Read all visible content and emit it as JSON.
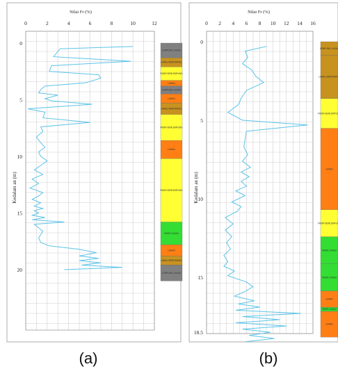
{
  "colors": {
    "line": "#5bc3e8",
    "grid": "#cfcfcf",
    "frame": "#9a9a9a",
    "soil_gray": "#808080",
    "soil_brown": "#c8921e",
    "soil_yellow": "#ffff33",
    "soil_orange": "#ff7f14",
    "soil_green": "#33dd33"
  },
  "chart_data": [
    {
      "type": "line",
      "panel": "(a)",
      "title": "Nilai Fr (%)",
      "xlabel": "Nilai Fr (%)",
      "ylabel": "Kedalam an (m)",
      "xlim": [
        0,
        12
      ],
      "xticks": [
        "0",
        "2",
        "4",
        "6",
        "8",
        "10",
        "12"
      ],
      "ylim": [
        0,
        23
      ],
      "yticks": [
        "0",
        "5",
        "10",
        "15",
        "20"
      ],
      "grid": true,
      "series": [
        {
          "x": [
            10,
            3.2,
            2.6,
            9.8,
            2.4,
            2.2,
            6.8,
            7.0,
            5.6,
            1.8,
            1.4,
            1.2,
            3.0,
            1.8,
            2.4,
            6.2,
            0.2,
            1.8,
            1.6,
            6.0,
            1.4,
            1.6,
            1.0,
            1.4,
            1.8,
            1.2,
            1.4,
            2.0,
            1.4,
            0.8,
            1.6,
            0.6,
            1.2,
            0.4,
            1.6,
            1.2,
            0.6,
            1.4,
            0.8,
            1.6,
            0.8,
            1.2,
            0.6,
            1.8,
            0.6,
            3.6,
            0.8,
            1.6,
            1.2,
            1.4,
            2.2,
            5.0,
            6.6,
            5.0,
            6.8,
            5.0,
            7.0,
            5.2,
            9.0,
            3.6
          ],
          "y": [
            0.3,
            0.5,
            1.2,
            1.6,
            2.0,
            2.5,
            2.8,
            3.1,
            3.5,
            3.8,
            4.1,
            4.4,
            4.6,
            4.9,
            5.1,
            5.4,
            5.8,
            6.1,
            6.6,
            7.0,
            7.4,
            7.8,
            8.3,
            8.8,
            9.2,
            9.6,
            10.0,
            10.4,
            10.8,
            11.2,
            11.6,
            12.0,
            12.4,
            12.8,
            13.2,
            13.5,
            13.8,
            14.1,
            14.4,
            14.6,
            14.8,
            15.0,
            15.2,
            15.4,
            15.6,
            15.8,
            16.0,
            16.6,
            17.2,
            17.6,
            17.9,
            18.2,
            18.5,
            18.8,
            19.0,
            19.2,
            19.4,
            19.6,
            19.8,
            20.0
          ]
        }
      ],
      "soil_column": [
        {
          "from": 0,
          "to": 1.3,
          "color": "#808080",
          "label": "LEMPUNG LANAU"
        },
        {
          "from": 1.3,
          "to": 2.1,
          "color": "#c8921e",
          "label": "LANAU BERGRAVEL"
        },
        {
          "from": 2.1,
          "to": 3.3,
          "color": "#ffff33",
          "label": "PASIR BERLEMPUNG"
        },
        {
          "from": 3.3,
          "to": 3.8,
          "color": "#ff7f14",
          "label": "LANAU"
        },
        {
          "from": 3.8,
          "to": 4.5,
          "color": "#808080",
          "label": "LEMPUNG LANAU"
        },
        {
          "from": 4.5,
          "to": 5.3,
          "color": "#ff7f14",
          "label": "LANAU"
        },
        {
          "from": 5.3,
          "to": 6.3,
          "color": "#c8921e",
          "label": "LANAU BERGRAVEL"
        },
        {
          "from": 6.3,
          "to": 8.6,
          "color": "#ffff33",
          "label": "PASIR BERLEMPUNG"
        },
        {
          "from": 8.6,
          "to": 10.2,
          "color": "#ff7f14",
          "label": "LANAU"
        },
        {
          "from": 10.2,
          "to": 15.8,
          "color": "#ffff33",
          "label": "PASIR BERLEMPUNG"
        },
        {
          "from": 15.8,
          "to": 17.8,
          "color": "#33dd33",
          "label": "PASIR LANAU"
        },
        {
          "from": 17.8,
          "to": 18.8,
          "color": "#ff7f14",
          "label": "LANAU"
        },
        {
          "from": 18.8,
          "to": 19.6,
          "color": "#c8921e",
          "label": "LANAU BERGRAVEL"
        },
        {
          "from": 19.6,
          "to": 21.0,
          "color": "#808080",
          "label": "LEMPUNG LANAU"
        }
      ]
    },
    {
      "type": "line",
      "panel": "(b)",
      "title": "Nilai Fr (%)",
      "xlabel": "Nilai Fr (%)",
      "ylabel": "Kedalam an (m)",
      "xlim": [
        0,
        16
      ],
      "xticks": [
        "0",
        "2",
        "4",
        "6",
        "8",
        "10",
        "12",
        "14",
        "16"
      ],
      "ylim": [
        0,
        18.5
      ],
      "yticks": [
        "0",
        "5",
        "10",
        "15",
        "18.5"
      ],
      "grid": true,
      "series": [
        {
          "x": [
            9.0,
            5.8,
            6.2,
            5.4,
            6.8,
            7.4,
            8.6,
            6.0,
            5.2,
            4.8,
            3.2,
            5.4,
            15.2,
            6.0,
            5.8,
            5.6,
            6.2,
            5.4,
            6.6,
            5.2,
            6.4,
            5.2,
            6.0,
            4.4,
            5.8,
            3.8,
            5.2,
            4.6,
            2.8,
            4.0,
            2.8,
            3.8,
            3.0,
            3.6,
            2.6,
            3.2,
            2.6,
            4.2,
            3.2,
            6.0,
            7.0,
            5.8,
            4.2,
            7.2,
            4.8,
            8.0,
            4.4,
            14.2,
            5.4,
            11.0,
            4.4,
            12.0,
            5.4,
            9.6,
            6.4,
            10.2,
            5.8
          ],
          "y": [
            0.3,
            0.6,
            1.0,
            1.4,
            1.8,
            2.2,
            2.6,
            3.1,
            3.6,
            4.0,
            4.5,
            5.0,
            5.3,
            5.7,
            6.2,
            6.7,
            7.2,
            7.6,
            8.0,
            8.3,
            8.6,
            8.9,
            9.2,
            9.5,
            9.8,
            10.2,
            10.5,
            10.8,
            11.2,
            11.6,
            12.0,
            12.4,
            12.8,
            13.2,
            13.6,
            14.0,
            14.3,
            14.6,
            14.9,
            15.3,
            15.6,
            15.9,
            16.2,
            16.5,
            16.7,
            16.9,
            17.1,
            17.3,
            17.5,
            17.7,
            17.9,
            18.1,
            18.3,
            18.5,
            18.7,
            18.9,
            19.1
          ]
        }
      ],
      "soil_column": [
        {
          "from": 0,
          "to": 1.0,
          "color": "#c8921e",
          "label": "LEMPUNG LANAU"
        },
        {
          "from": 1.0,
          "to": 4.2,
          "color": "#c8921e",
          "label": "LANAU BERGRAVEL"
        },
        {
          "from": 4.2,
          "to": 6.4,
          "color": "#ffff33",
          "label": "PASIR BERLEMPUNG"
        },
        {
          "from": 6.4,
          "to": 12.4,
          "color": "#ff7f14",
          "label": "LANAU"
        },
        {
          "from": 12.4,
          "to": 14.4,
          "color": "#ffff33",
          "label": "PASIR BERLEMPUNG"
        },
        {
          "from": 14.4,
          "to": 16.4,
          "color": "#33dd33",
          "label": "PASIR LANAU"
        },
        {
          "from": 16.4,
          "to": 18.4,
          "color": "#33dd33",
          "label": "PASIR LANAU"
        },
        {
          "from": 18.4,
          "to": 19.6,
          "color": "#ff7f14",
          "label": "LANAU"
        },
        {
          "from": 19.6,
          "to": 19.9,
          "color": "#33dd33",
          "label": "PASIR LANAU"
        },
        {
          "from": 19.9,
          "to": 21.8,
          "color": "#ff7f14",
          "label": "LANAU"
        }
      ]
    }
  ],
  "captions": [
    "(a)",
    "(b)"
  ]
}
